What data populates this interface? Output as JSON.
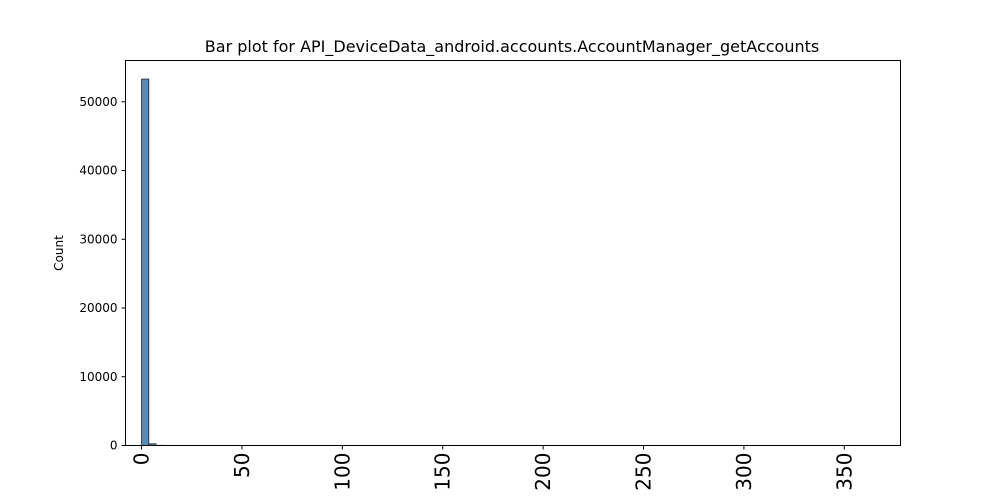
{
  "chart_data": {
    "type": "bar",
    "title": "Bar plot for API_DeviceData_android.accounts.AccountManager_getAccounts",
    "xlabel": "",
    "ylabel": "Count",
    "xlim": [
      -8,
      378
    ],
    "ylim": [
      0,
      56000
    ],
    "xticks": [
      0,
      50,
      100,
      150,
      200,
      250,
      300,
      350
    ],
    "yticks": [
      0,
      10000,
      20000,
      30000,
      40000,
      50000
    ],
    "bins": [
      {
        "x0": 0,
        "x1": 3.6,
        "count": 53300
      },
      {
        "x0": 3.6,
        "x1": 7.2,
        "count": 250
      },
      {
        "x0": 7.2,
        "x1": 10.8,
        "count": 30
      },
      {
        "x0": 10.8,
        "x1": 14.4,
        "count": 10
      }
    ],
    "colors": {
      "bar": "#3b75af"
    },
    "grid": false,
    "legend": false
  }
}
